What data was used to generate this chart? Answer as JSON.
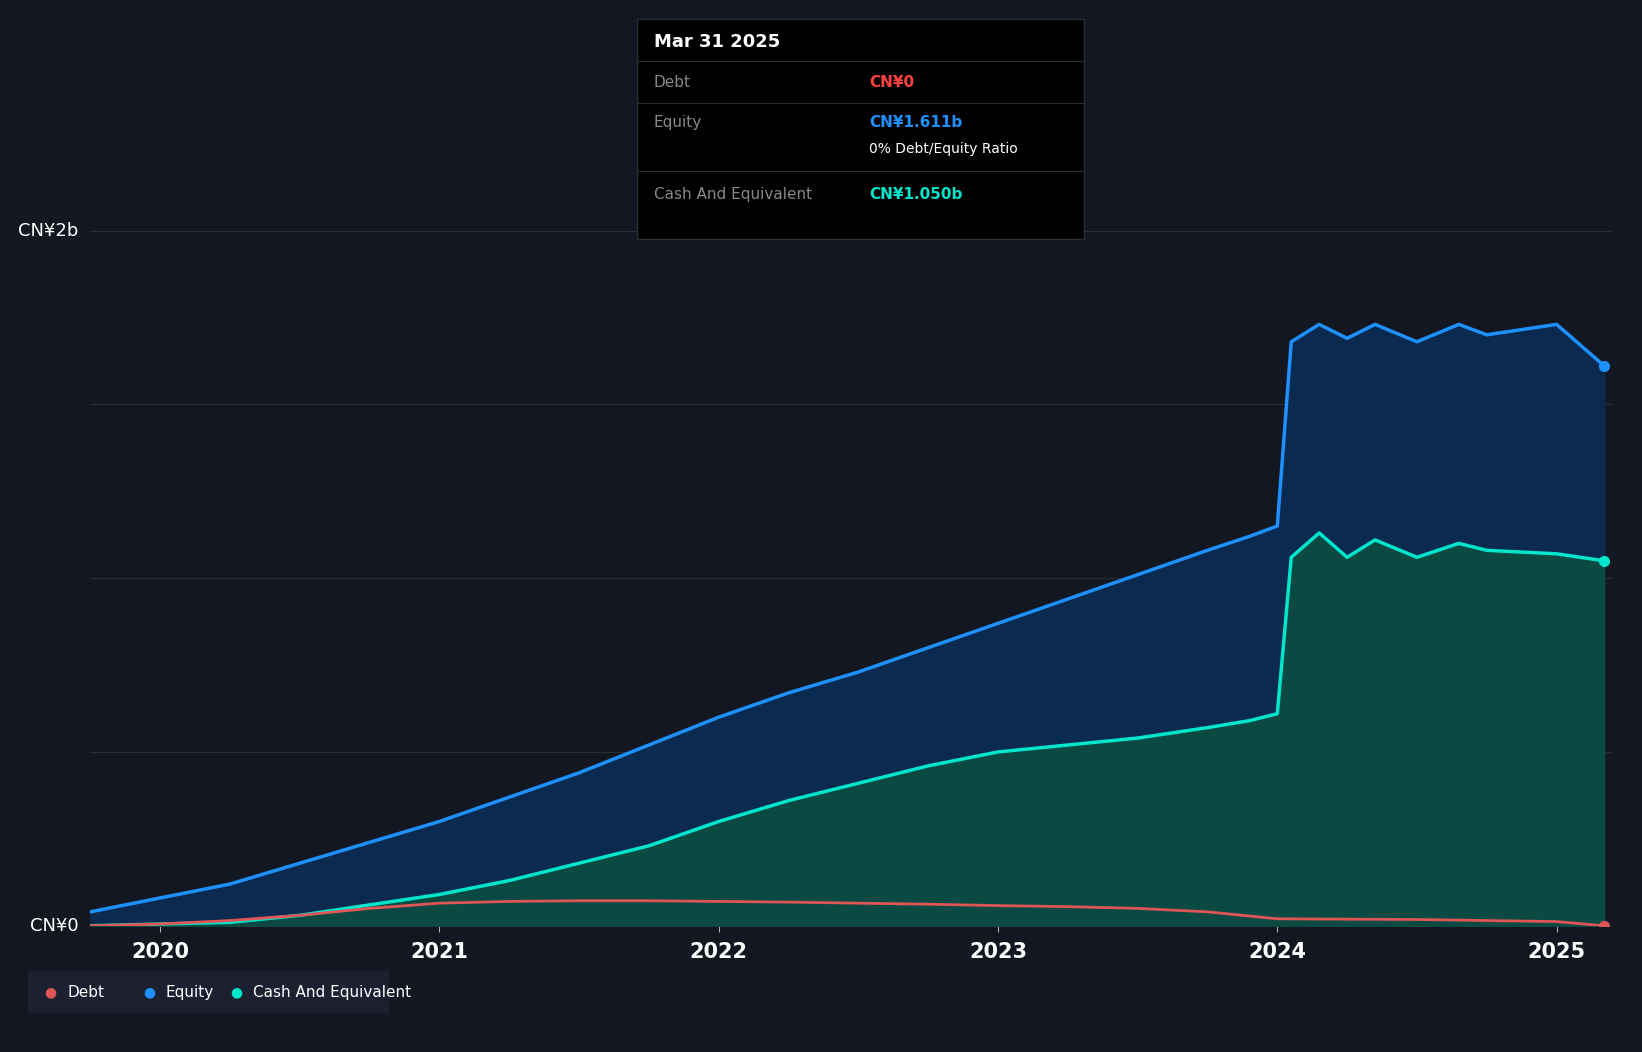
{
  "background_color": "#131722",
  "plot_bg_color": "#131722",
  "grid_color": "#2a2e39",
  "ylabel_top": "CN¥2b",
  "ylabel_bottom": "CN¥0",
  "x_ticks": [
    2020,
    2021,
    2022,
    2023,
    2024,
    2025
  ],
  "ylim": [
    0,
    2.3
  ],
  "equity_x": [
    2019.75,
    2020.0,
    2020.25,
    2020.5,
    2020.75,
    2021.0,
    2021.25,
    2021.5,
    2021.75,
    2022.0,
    2022.25,
    2022.5,
    2022.75,
    2023.0,
    2023.25,
    2023.5,
    2023.75,
    2023.9,
    2024.0,
    2024.05,
    2024.15,
    2024.25,
    2024.35,
    2024.5,
    2024.65,
    2024.75,
    2025.0,
    2025.17
  ],
  "equity_y": [
    0.04,
    0.08,
    0.12,
    0.18,
    0.24,
    0.3,
    0.37,
    0.44,
    0.52,
    0.6,
    0.67,
    0.73,
    0.8,
    0.87,
    0.94,
    1.01,
    1.08,
    1.12,
    1.15,
    1.68,
    1.73,
    1.69,
    1.73,
    1.68,
    1.73,
    1.7,
    1.73,
    1.611
  ],
  "cash_x": [
    2019.75,
    2020.0,
    2020.25,
    2020.5,
    2020.75,
    2021.0,
    2021.25,
    2021.5,
    2021.75,
    2022.0,
    2022.25,
    2022.5,
    2022.75,
    2023.0,
    2023.25,
    2023.5,
    2023.75,
    2023.9,
    2024.0,
    2024.05,
    2024.15,
    2024.25,
    2024.35,
    2024.5,
    2024.65,
    2024.75,
    2025.0,
    2025.17
  ],
  "cash_y": [
    0.0,
    0.005,
    0.01,
    0.03,
    0.06,
    0.09,
    0.13,
    0.18,
    0.23,
    0.3,
    0.36,
    0.41,
    0.46,
    0.5,
    0.52,
    0.54,
    0.57,
    0.59,
    0.61,
    1.06,
    1.13,
    1.06,
    1.11,
    1.06,
    1.1,
    1.08,
    1.07,
    1.05
  ],
  "debt_x": [
    2019.75,
    2020.0,
    2020.25,
    2020.5,
    2020.75,
    2021.0,
    2021.25,
    2021.5,
    2021.75,
    2022.0,
    2022.25,
    2022.5,
    2022.75,
    2023.0,
    2023.25,
    2023.5,
    2023.75,
    2024.0,
    2024.5,
    2024.75,
    2025.0,
    2025.17
  ],
  "debt_y": [
    0.0,
    0.005,
    0.015,
    0.03,
    0.05,
    0.065,
    0.07,
    0.072,
    0.072,
    0.07,
    0.068,
    0.065,
    0.062,
    0.058,
    0.055,
    0.05,
    0.04,
    0.02,
    0.018,
    0.015,
    0.012,
    0.0
  ],
  "equity_color": "#1e90ff",
  "equity_fill_color": "#0a2a50",
  "cash_color": "#00e5cc",
  "cash_fill_color": "#0a4a42",
  "debt_color": "#e05555",
  "legend_bg": "#1c2030",
  "legend_dot_colors": [
    "#e05555",
    "#1e90ff",
    "#00e5cc"
  ],
  "legend_labels": [
    "Debt",
    "Equity",
    "Cash And Equivalent"
  ],
  "tooltip_title": "Mar 31 2025",
  "tooltip_rows": [
    {
      "label": "Debt",
      "value": "CN¥0",
      "value_color": "#ff4040",
      "has_sub": false,
      "sub": ""
    },
    {
      "label": "Equity",
      "value": "CN¥1.611b",
      "value_color": "#1e90ff",
      "has_sub": true,
      "sub": "0% Debt/Equity Ratio"
    },
    {
      "label": "Cash And Equivalent",
      "value": "CN¥1.050b",
      "value_color": "#00e5cc",
      "has_sub": false,
      "sub": ""
    }
  ]
}
